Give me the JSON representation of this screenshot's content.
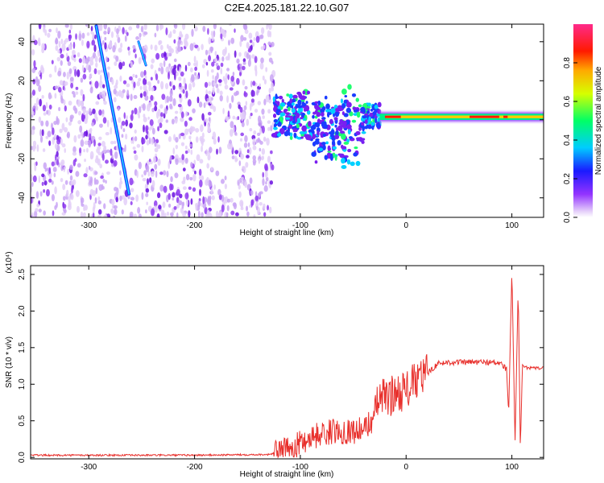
{
  "title": "C2E4.2025.181.22.10.G07",
  "colors": {
    "snr_line": "#e8302c",
    "scatter": "#7a1ef0",
    "axis": "#000000"
  },
  "chart_data": [
    {
      "type": "heatmap",
      "xlabel": "Height of straight line (km)",
      "ylabel": "Frequency (Hz)",
      "xlim": [
        -355,
        130
      ],
      "ylim": [
        -50,
        49
      ],
      "xticks": [
        -300,
        -200,
        -100,
        0,
        100
      ],
      "xtick_labels": [
        "-300",
        "-200",
        "-100",
        "0",
        "100"
      ],
      "yticks": [
        -40,
        -20,
        0,
        20,
        40
      ],
      "ytick_labels": [
        "-40",
        "-20",
        "0",
        "20",
        "40"
      ],
      "colorbar": {
        "label": "Normalized spectral amplitude",
        "range": [
          0,
          1
        ],
        "ticks": [
          0.0,
          0.2,
          0.4,
          0.6,
          0.8
        ],
        "tick_labels": [
          "0.0",
          "0.2",
          "0.4",
          "0.6",
          "0.8"
        ],
        "colormap": "rainbow (white-purple-blue-cyan-green-yellow-orange-red-magenta)"
      },
      "features": [
        {
          "name": "noise",
          "x_range": [
            -355,
            -125
          ],
          "y_range": [
            -50,
            49
          ],
          "amplitude": "low"
        },
        {
          "name": "diagonal streak",
          "x": [
            -293,
            -262
          ],
          "y": [
            48,
            -38
          ],
          "amplitude": 0.3
        },
        {
          "name": "short streak",
          "x": [
            -253,
            -246
          ],
          "y": [
            40,
            28
          ],
          "amplitude": 0.2
        },
        {
          "name": "transition band",
          "x_range": [
            -125,
            -25
          ],
          "y_center": 2,
          "amplitude": "0.2-0.5"
        },
        {
          "name": "main signal",
          "x_range": [
            -25,
            130
          ],
          "y_center": 1.5,
          "amplitude": "0.8-1.0"
        }
      ]
    },
    {
      "type": "line",
      "xlabel": "Height of straight line (km)",
      "ylabel": "SNR (10 * v/v)",
      "y_multiplier_label": "(x10⁴)",
      "xlim": [
        -355,
        130
      ],
      "ylim": [
        -0.02,
        2.62
      ],
      "xticks": [
        -300,
        -200,
        -100,
        0,
        100
      ],
      "xtick_labels": [
        "-300",
        "-200",
        "-100",
        "0",
        "100"
      ],
      "yticks": [
        0.0,
        0.5,
        1.0,
        1.5,
        2.0,
        2.5
      ],
      "ytick_labels": [
        "0.0",
        "0.5",
        "1.0",
        "1.5",
        "2.0",
        "2.5"
      ],
      "series": [
        {
          "x": [
            -355,
            -300,
            -200,
            -130,
            -110,
            -100,
            -90,
            -80,
            -70,
            -60,
            -50,
            -40,
            -30,
            -25,
            -20,
            -10,
            0,
            5,
            10,
            15,
            20,
            30,
            40,
            60,
            80,
            90,
            95,
            97,
            100,
            103,
            106,
            108,
            110,
            115,
            130
          ],
          "y": [
            0.03,
            0.03,
            0.03,
            0.04,
            0.1,
            0.2,
            0.28,
            0.32,
            0.35,
            0.36,
            0.36,
            0.38,
            0.55,
            0.85,
            0.8,
            0.88,
            0.92,
            0.98,
            1.05,
            1.1,
            1.15,
            1.28,
            1.3,
            1.3,
            1.3,
            1.28,
            1.2,
            0.6,
            2.55,
            0.2,
            2.3,
            0.1,
            1.25,
            1.22,
            1.22
          ]
        }
      ]
    }
  ]
}
